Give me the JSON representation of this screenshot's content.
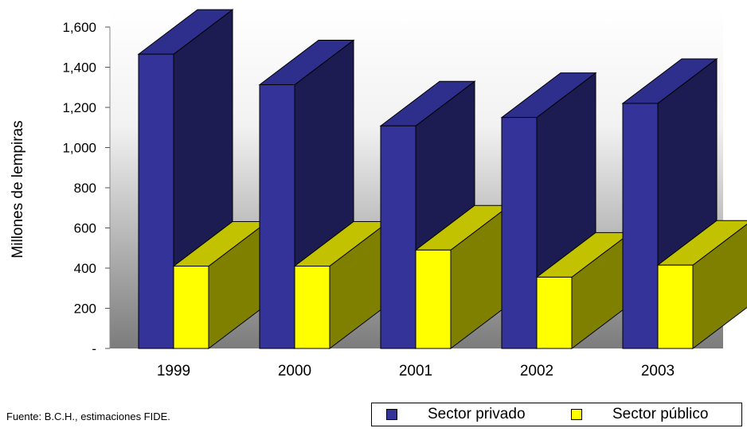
{
  "chart_data": {
    "type": "bar",
    "categories": [
      "1999",
      "2000",
      "2001",
      "2002",
      "2003"
    ],
    "series": [
      {
        "name": "Sector privado",
        "values": [
          1465,
          1313,
          1108,
          1150,
          1220
        ],
        "color": "#333399"
      },
      {
        "name": "Sector público",
        "values": [
          410,
          410,
          490,
          355,
          415
        ],
        "color": "#ffff00"
      }
    ],
    "ylabel": "Millones de lempiras",
    "ylim": [
      0,
      1600
    ],
    "yticks": [
      "-",
      "200",
      "400",
      "600",
      "800",
      "1,000",
      "1,200",
      "1,400",
      "1,600"
    ],
    "grid": false,
    "legend_position": "bottom-right"
  },
  "source_note": "Fuente: B.C.H., estimaciones FIDE.",
  "legend": {
    "private_label": "Sector privado",
    "public_label": "Sector público"
  }
}
